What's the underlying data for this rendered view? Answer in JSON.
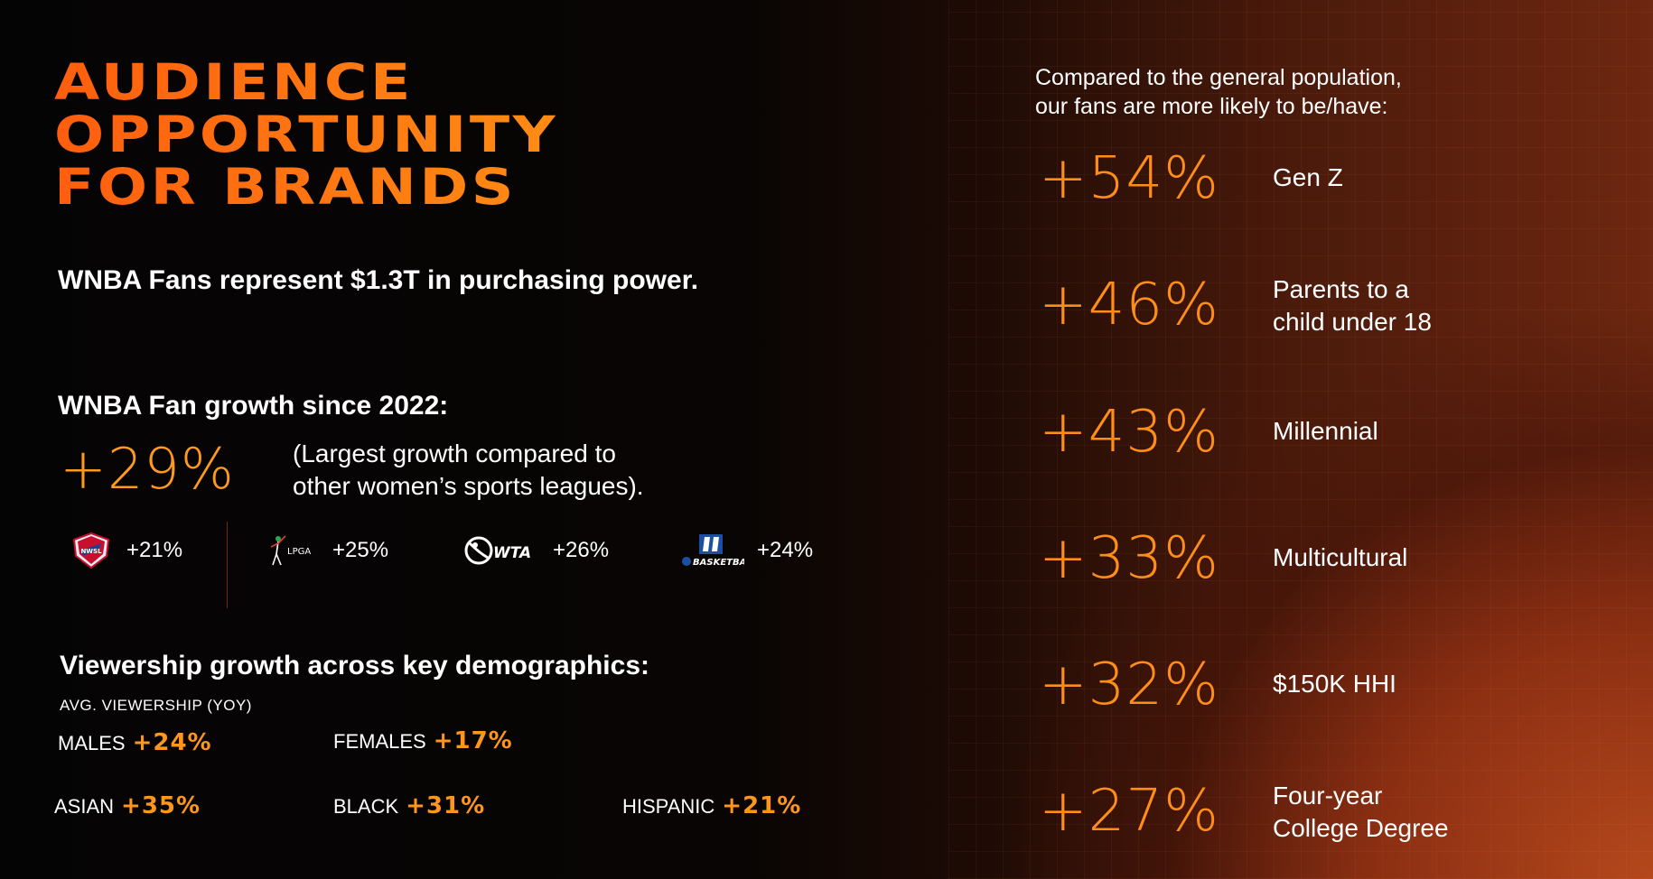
{
  "title": {
    "line1": "AUDIENCE",
    "line2": "OPPORTUNITY",
    "line3": "FOR BRANDS"
  },
  "purchasing_power": "WNBA Fans represent $1.3T in purchasing power.",
  "growth": {
    "heading": "WNBA Fan growth since 2022:",
    "value": "+29%",
    "note_line1": "(Largest growth compared to",
    "note_line2": "other women’s sports leagues).",
    "leagues": [
      {
        "name": "NWSL",
        "icon": "nwsl-logo-icon",
        "value": "+21%"
      },
      {
        "name": "LPGA",
        "icon": "lpga-logo-icon",
        "value": "+25%"
      },
      {
        "name": "WTA",
        "icon": "wta-logo-icon",
        "value": "+26%"
      },
      {
        "name": "BASKETBALL",
        "icon": "ncaa-basketball-logo-icon",
        "value": "+24%"
      }
    ]
  },
  "viewership": {
    "heading": "Viewership growth across key demographics:",
    "caption": "AVG. VIEWERSHIP (YOY)",
    "demographics": [
      {
        "label": "MALES",
        "value": "+24%"
      },
      {
        "label": "FEMALES",
        "value": "+17%"
      },
      {
        "label": "ASIAN",
        "value": "+35%"
      },
      {
        "label": "BLACK",
        "value": "+31%"
      },
      {
        "label": "HISPANIC",
        "value": "+21%"
      }
    ]
  },
  "comparison": {
    "intro_line1": "Compared to the general population,",
    "intro_line2": "our fans are more likely to be/have:",
    "stats": [
      {
        "value": "+54%",
        "label_line1": "Gen Z",
        "label_line2": ""
      },
      {
        "value": "+46%",
        "label_line1": "Parents to a",
        "label_line2": "child under 18"
      },
      {
        "value": "+43%",
        "label_line1": "Millennial",
        "label_line2": ""
      },
      {
        "value": "+33%",
        "label_line1": "Multicultural",
        "label_line2": ""
      },
      {
        "value": "+32%",
        "label_line1": "$150K HHI",
        "label_line2": ""
      },
      {
        "value": "+27%",
        "label_line1": "Four-year",
        "label_line2": "College Degree"
      }
    ]
  },
  "colors": {
    "accent_orange": "#ff8e18",
    "title_orange": "#ff6a12",
    "background_dark": "#050404",
    "background_warm": "#8a2e12"
  }
}
